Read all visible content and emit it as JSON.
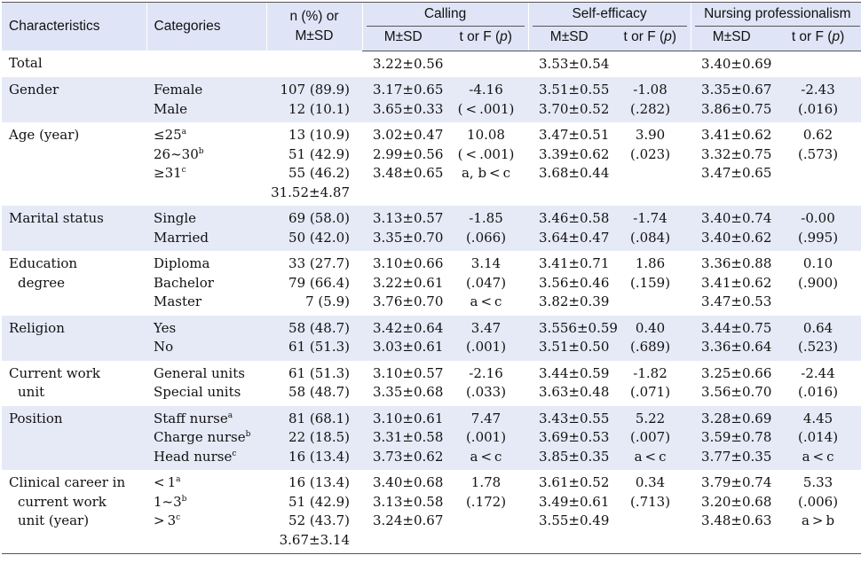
{
  "header": {
    "characteristics": "Characteristics",
    "categories": "Categories",
    "n_line1": "n (%) or",
    "n_line2": "M±SD",
    "calling": "Calling",
    "self_efficacy": "Self-efficacy",
    "professionalism": "Nursing professionalism",
    "msd": "M±SD",
    "tf_prefix": "t or F (",
    "tf_p": "p",
    "tf_suffix": ")"
  },
  "rows": [
    {
      "shade": false,
      "characteristic": [
        "Total"
      ],
      "categories": [],
      "n": [],
      "calling_ms": [
        "3.22±0.56"
      ],
      "calling_t": [],
      "se_ms": [
        "3.53±0.54"
      ],
      "se_t": [],
      "np_ms": [
        "3.40±0.69"
      ],
      "np_t": []
    },
    {
      "shade": true,
      "characteristic": [
        "Gender"
      ],
      "categories": [
        {
          "t": "Female"
        },
        {
          "t": "Male"
        }
      ],
      "n": [
        "107 (89.9)",
        "12 (10.1)"
      ],
      "calling_ms": [
        "3.17±0.65",
        "3.65±0.33"
      ],
      "calling_t": [
        "-4.16",
        "( < .001)"
      ],
      "se_ms": [
        "3.51±0.55",
        "3.70±0.52"
      ],
      "se_t": [
        "-1.08",
        "(.282)"
      ],
      "np_ms": [
        "3.35±0.67",
        "3.86±0.75"
      ],
      "np_t": [
        "-2.43",
        "(.016)"
      ]
    },
    {
      "shade": false,
      "characteristic": [
        "Age (year)"
      ],
      "categories": [
        {
          "t": "≤25",
          "s": "a"
        },
        {
          "t": "26~30",
          "s": "b"
        },
        {
          "t": "≥31",
          "s": "c"
        }
      ],
      "n": [
        "13 (10.9)",
        "51 (42.9)",
        "55 (46.2)",
        "31.52±4.87"
      ],
      "calling_ms": [
        "3.02±0.47",
        "2.99±0.56",
        "3.48±0.65"
      ],
      "calling_t": [
        "10.08",
        "( < .001)",
        "a, b < c"
      ],
      "se_ms": [
        "3.47±0.51",
        "3.39±0.62",
        "3.68±0.44"
      ],
      "se_t": [
        "3.90",
        "(.023)"
      ],
      "np_ms": [
        "3.41±0.62",
        "3.32±0.75",
        "3.47±0.65"
      ],
      "np_t": [
        "0.62",
        "(.573)"
      ]
    },
    {
      "shade": true,
      "characteristic": [
        "Marital status"
      ],
      "categories": [
        {
          "t": "Single"
        },
        {
          "t": "Married"
        }
      ],
      "n": [
        "69 (58.0)",
        "50 (42.0)"
      ],
      "calling_ms": [
        "3.13±0.57",
        "3.35±0.70"
      ],
      "calling_t": [
        "-1.85",
        "(.066)"
      ],
      "se_ms": [
        "3.46±0.58",
        "3.64±0.47"
      ],
      "se_t": [
        "-1.74",
        "(.084)"
      ],
      "np_ms": [
        "3.40±0.74",
        "3.40±0.62"
      ],
      "np_t": [
        "-0.00",
        "(.995)"
      ]
    },
    {
      "shade": false,
      "characteristic": [
        "Education",
        "degree"
      ],
      "categories": [
        {
          "t": "Diploma"
        },
        {
          "t": "Bachelor"
        },
        {
          "t": "Master"
        }
      ],
      "n": [
        "33 (27.7)",
        "79 (66.4)",
        "7 (5.9)"
      ],
      "calling_ms": [
        "3.10±0.66",
        "3.22±0.61",
        "3.76±0.70"
      ],
      "calling_t": [
        "3.14",
        "(.047)",
        "a < c"
      ],
      "se_ms": [
        "3.41±0.71",
        "3.56±0.46",
        "3.82±0.39"
      ],
      "se_t": [
        "1.86",
        "(.159)"
      ],
      "np_ms": [
        "3.36±0.88",
        "3.41±0.62",
        "3.47±0.53"
      ],
      "np_t": [
        "0.10",
        "(.900)"
      ]
    },
    {
      "shade": true,
      "characteristic": [
        "Religion"
      ],
      "categories": [
        {
          "t": "Yes"
        },
        {
          "t": "No"
        }
      ],
      "n": [
        "58 (48.7)",
        "61 (51.3)"
      ],
      "calling_ms": [
        "3.42±0.64",
        "3.03±0.61"
      ],
      "calling_t": [
        "3.47",
        "(.001)"
      ],
      "se_ms": [
        "3.556±0.59",
        "3.51±0.50"
      ],
      "se_t": [
        "0.40",
        "(.689)"
      ],
      "np_ms": [
        "3.44±0.75",
        "3.36±0.64"
      ],
      "np_t": [
        "0.64",
        "(.523)"
      ]
    },
    {
      "shade": false,
      "characteristic": [
        "Current work",
        "unit"
      ],
      "categories": [
        {
          "t": "General units"
        },
        {
          "t": "Special units"
        }
      ],
      "n": [
        "61 (51.3)",
        "58 (48.7)"
      ],
      "calling_ms": [
        "3.10±0.57",
        "3.35±0.68"
      ],
      "calling_t": [
        "-2.16",
        "(.033)"
      ],
      "se_ms": [
        "3.44±0.59",
        "3.63±0.48"
      ],
      "se_t": [
        "-1.82",
        "(.071)"
      ],
      "np_ms": [
        "3.25±0.66",
        "3.56±0.70"
      ],
      "np_t": [
        "-2.44",
        "(.016)"
      ]
    },
    {
      "shade": true,
      "characteristic": [
        "Position"
      ],
      "categories": [
        {
          "t": "Staff nurse",
          "s": "a"
        },
        {
          "t": "Charge nurse",
          "s": "b"
        },
        {
          "t": "Head nurse",
          "s": "c"
        }
      ],
      "n": [
        "81 (68.1)",
        "22 (18.5)",
        "16 (13.4)"
      ],
      "calling_ms": [
        "3.10±0.61",
        "3.31±0.58",
        "3.73±0.62"
      ],
      "calling_t": [
        "7.47",
        "(.001)",
        "a < c"
      ],
      "se_ms": [
        "3.43±0.55",
        "3.69±0.53",
        "3.85±0.35"
      ],
      "se_t": [
        "5.22",
        "(.007)",
        "a < c"
      ],
      "np_ms": [
        "3.28±0.69",
        "3.59±0.78",
        "3.77±0.35"
      ],
      "np_t": [
        "4.45",
        "(.014)",
        "a < c"
      ]
    },
    {
      "shade": false,
      "characteristic": [
        "Clinical career in",
        "current work",
        "unit (year)"
      ],
      "categories": [
        {
          "t": "< 1",
          "s": "a"
        },
        {
          "t": "1~3",
          "s": "b"
        },
        {
          "t": "> 3",
          "s": "c"
        }
      ],
      "n": [
        "16 (13.4)",
        "51 (42.9)",
        "52 (43.7)",
        "3.67±3.14"
      ],
      "calling_ms": [
        "3.40±0.68",
        "3.13±0.58",
        "3.24±0.67"
      ],
      "calling_t": [
        "1.78",
        "(.172)"
      ],
      "se_ms": [
        "3.61±0.52",
        "3.49±0.61",
        "3.55±0.49"
      ],
      "se_t": [
        "0.34",
        "(.713)"
      ],
      "np_ms": [
        "3.79±0.74",
        "3.20±0.68",
        "3.48±0.63"
      ],
      "np_t": [
        "5.33",
        "(.006)",
        "a > b"
      ]
    }
  ]
}
